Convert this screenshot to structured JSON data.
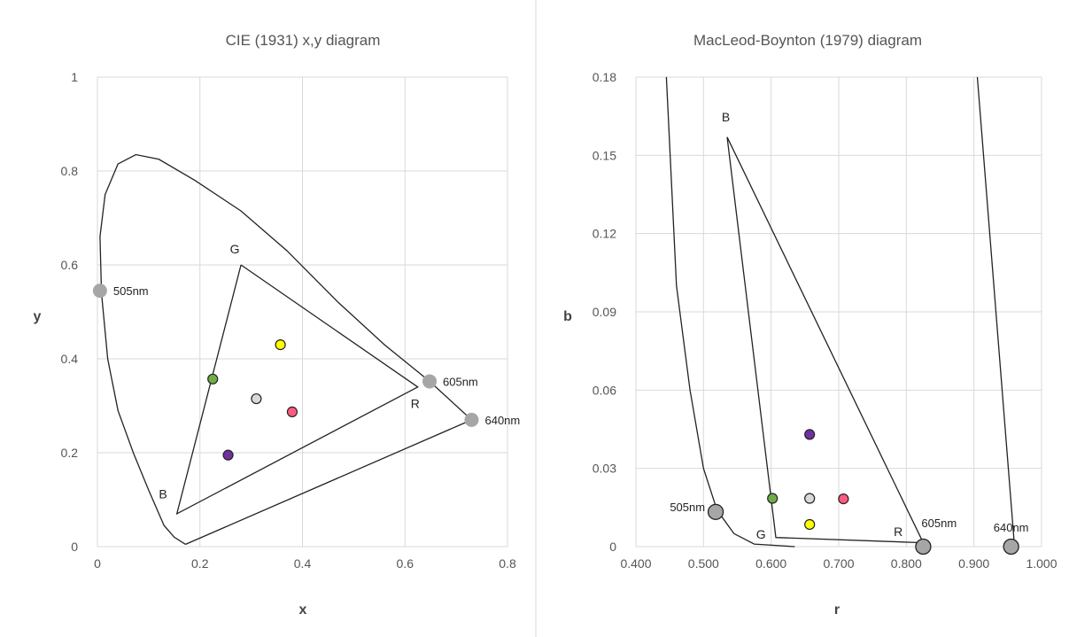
{
  "chart_data": [
    {
      "type": "scatter",
      "title": "CIE (1931) x,y diagram",
      "xlabel": "x",
      "ylabel": "y",
      "xlim": [
        0,
        0.8
      ],
      "ylim": [
        0,
        1
      ],
      "xticks": [
        0,
        0.2,
        0.4,
        0.6,
        0.8
      ],
      "yticks": [
        0,
        0.2,
        0.4,
        0.6,
        0.8,
        1
      ],
      "xtick_labels": [
        "0",
        "0.2",
        "0.4",
        "0.6",
        "0.8"
      ],
      "ytick_labels": [
        "0",
        "0.2",
        "0.4",
        "0.6",
        "0.8",
        "1"
      ],
      "grid": true,
      "spectral_locus": [
        [
          0.172,
          0.005
        ],
        [
          0.15,
          0.02
        ],
        [
          0.13,
          0.045
        ],
        [
          0.1,
          0.12
        ],
        [
          0.07,
          0.2
        ],
        [
          0.04,
          0.29
        ],
        [
          0.02,
          0.4
        ],
        [
          0.008,
          0.54
        ],
        [
          0.005,
          0.66
        ],
        [
          0.015,
          0.75
        ],
        [
          0.04,
          0.815
        ],
        [
          0.075,
          0.835
        ],
        [
          0.12,
          0.825
        ],
        [
          0.19,
          0.78
        ],
        [
          0.28,
          0.715
        ],
        [
          0.37,
          0.63
        ],
        [
          0.47,
          0.52
        ],
        [
          0.56,
          0.43
        ],
        [
          0.648,
          0.352
        ],
        [
          0.73,
          0.27
        ],
        [
          0.172,
          0.005
        ]
      ],
      "gamut_triangle": [
        [
          0.28,
          0.6
        ],
        [
          0.625,
          0.34
        ],
        [
          0.155,
          0.07
        ],
        [
          0.28,
          0.6
        ]
      ],
      "gamut_labels": [
        {
          "text": "G",
          "x": 0.268,
          "y": 0.625
        },
        {
          "text": "R",
          "x": 0.62,
          "y": 0.295
        },
        {
          "text": "B",
          "x": 0.128,
          "y": 0.103
        }
      ],
      "primaries": [
        {
          "label": "505nm",
          "x": 0.005,
          "y": 0.545,
          "color": "#a6a6a6"
        },
        {
          "label": "605nm",
          "x": 0.648,
          "y": 0.352,
          "color": "#a6a6a6"
        },
        {
          "label": "640nm",
          "x": 0.73,
          "y": 0.27,
          "color": "#a6a6a6"
        }
      ],
      "points": [
        {
          "x": 0.225,
          "y": 0.357,
          "color": "#70ad47"
        },
        {
          "x": 0.357,
          "y": 0.43,
          "color": "#ffff00"
        },
        {
          "x": 0.31,
          "y": 0.315,
          "color": "#d9d9d9"
        },
        {
          "x": 0.38,
          "y": 0.287,
          "color": "#ff5b82"
        },
        {
          "x": 0.255,
          "y": 0.195,
          "color": "#7030a0"
        }
      ]
    },
    {
      "type": "scatter",
      "title": "MacLeod-Boynton (1979) diagram",
      "xlabel": "r",
      "ylabel": "b",
      "xlim": [
        0.4,
        1.0
      ],
      "ylim": [
        0,
        0.18
      ],
      "xticks": [
        0.4,
        0.5,
        0.6,
        0.7,
        0.8,
        0.9,
        1.0
      ],
      "yticks": [
        0,
        0.03,
        0.06,
        0.09,
        0.12,
        0.15,
        0.18
      ],
      "xtick_labels": [
        "0.400",
        "0.500",
        "0.600",
        "0.700",
        "0.800",
        "0.900",
        "1.000"
      ],
      "ytick_labels": [
        "0",
        "0.03",
        "0.06",
        "0.09",
        "0.12",
        "0.15",
        "0.18"
      ],
      "grid": true,
      "spectral_locus_left": [
        [
          0.445,
          0.18
        ],
        [
          0.46,
          0.1
        ],
        [
          0.48,
          0.06
        ],
        [
          0.5,
          0.03
        ],
        [
          0.52,
          0.014
        ],
        [
          0.545,
          0.005
        ],
        [
          0.575,
          0.001
        ],
        [
          0.635,
          0.0
        ]
      ],
      "spectral_locus_right": [
        [
          0.905,
          0.18
        ],
        [
          0.96,
          0.0
        ]
      ],
      "gamut_triangle": [
        [
          0.535,
          0.157
        ],
        [
          0.825,
          0.0015
        ],
        [
          0.607,
          0.0035
        ],
        [
          0.535,
          0.157
        ]
      ],
      "gamut_labels": [
        {
          "text": "B",
          "x": 0.533,
          "y": 0.163
        },
        {
          "text": "G",
          "x": 0.585,
          "y": 0.003
        },
        {
          "text": "R",
          "x": 0.788,
          "y": 0.004
        }
      ],
      "primaries": [
        {
          "label": "505nm",
          "x": 0.518,
          "y": 0.0133,
          "color": "#a6a6a6"
        },
        {
          "label": "605nm",
          "x": 0.825,
          "y": 0.0,
          "color": "#a6a6a6"
        },
        {
          "label": "640nm",
          "x": 0.955,
          "y": 0.0,
          "color": "#a6a6a6"
        }
      ],
      "points": [
        {
          "x": 0.602,
          "y": 0.0185,
          "color": "#70ad47"
        },
        {
          "x": 0.657,
          "y": 0.0185,
          "color": "#d9d9d9"
        },
        {
          "x": 0.707,
          "y": 0.0183,
          "color": "#ff5b82"
        },
        {
          "x": 0.657,
          "y": 0.0085,
          "color": "#ffff00"
        },
        {
          "x": 0.657,
          "y": 0.043,
          "color": "#7030a0"
        }
      ]
    }
  ]
}
